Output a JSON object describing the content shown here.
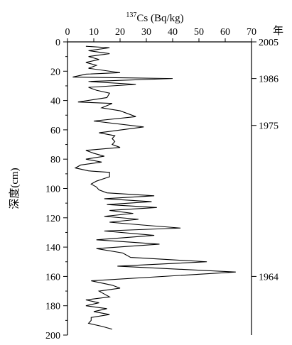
{
  "chart_data": {
    "type": "line",
    "title": "",
    "x_axis": {
      "label_sup": "137",
      "label_main": "Cs (Bq/kg)",
      "range": [
        0,
        70
      ],
      "ticks": [
        0,
        10,
        20,
        30,
        40,
        50,
        60,
        70
      ],
      "position": "top"
    },
    "y_axis": {
      "label": "深度(cm)",
      "range": [
        0,
        200
      ],
      "ticks": [
        0,
        20,
        40,
        60,
        80,
        100,
        120,
        140,
        160,
        180,
        200
      ],
      "inverted": true
    },
    "right_axis": {
      "label": "年",
      "markers": [
        {
          "depth": 0,
          "year": "2005"
        },
        {
          "depth": 25,
          "year": "1986"
        },
        {
          "depth": 57,
          "year": "1975"
        },
        {
          "depth": 160,
          "year": "1964"
        }
      ]
    },
    "series": [
      {
        "points": [
          [
            7,
            3
          ],
          [
            16,
            4
          ],
          [
            8,
            6
          ],
          [
            16,
            8
          ],
          [
            8,
            10
          ],
          [
            12,
            12
          ],
          [
            7,
            14
          ],
          [
            11,
            16
          ],
          [
            8,
            18
          ],
          [
            20,
            21
          ],
          [
            7,
            22
          ],
          [
            2,
            24
          ],
          [
            40,
            25
          ],
          [
            8,
            27
          ],
          [
            26,
            29
          ],
          [
            8,
            31
          ],
          [
            11,
            33
          ],
          [
            16,
            35
          ],
          [
            15,
            38
          ],
          [
            4,
            41
          ],
          [
            17,
            42
          ],
          [
            13,
            45
          ],
          [
            20,
            47
          ],
          [
            26,
            51
          ],
          [
            10,
            54
          ],
          [
            29,
            58
          ],
          [
            12,
            62
          ],
          [
            18,
            64
          ],
          [
            17,
            66
          ],
          [
            18,
            68
          ],
          [
            17,
            70
          ],
          [
            20,
            72
          ],
          [
            7,
            74
          ],
          [
            10,
            76
          ],
          [
            14,
            78
          ],
          [
            7,
            80
          ],
          [
            13,
            82
          ],
          [
            5,
            84
          ],
          [
            3,
            86
          ],
          [
            8,
            88
          ],
          [
            16,
            89
          ],
          [
            16,
            92
          ],
          [
            11,
            95
          ],
          [
            9,
            97
          ],
          [
            11,
            99
          ],
          [
            12,
            101
          ],
          [
            15,
            103
          ],
          [
            33,
            105
          ],
          [
            14,
            107
          ],
          [
            32,
            109
          ],
          [
            15,
            111
          ],
          [
            34,
            113
          ],
          [
            16,
            115
          ],
          [
            25,
            117
          ],
          [
            14,
            119
          ],
          [
            27,
            121
          ],
          [
            16,
            123
          ],
          [
            29,
            125
          ],
          [
            43,
            127
          ],
          [
            14,
            129
          ],
          [
            33,
            132
          ],
          [
            11,
            135
          ],
          [
            35,
            138
          ],
          [
            11,
            141
          ],
          [
            21,
            144
          ],
          [
            24,
            147
          ],
          [
            53,
            150
          ],
          [
            19,
            153
          ],
          [
            64,
            157
          ],
          [
            9,
            163
          ],
          [
            17,
            166
          ],
          [
            20,
            168
          ],
          [
            12,
            170
          ],
          [
            14,
            172
          ],
          [
            16,
            174
          ],
          [
            7,
            176
          ],
          [
            12,
            178
          ],
          [
            7,
            180
          ],
          [
            15,
            182
          ],
          [
            10,
            184
          ],
          [
            16,
            186
          ],
          [
            9,
            188
          ],
          [
            9,
            190
          ],
          [
            8,
            192
          ],
          [
            13,
            194
          ],
          [
            17,
            196
          ]
        ]
      }
    ]
  }
}
